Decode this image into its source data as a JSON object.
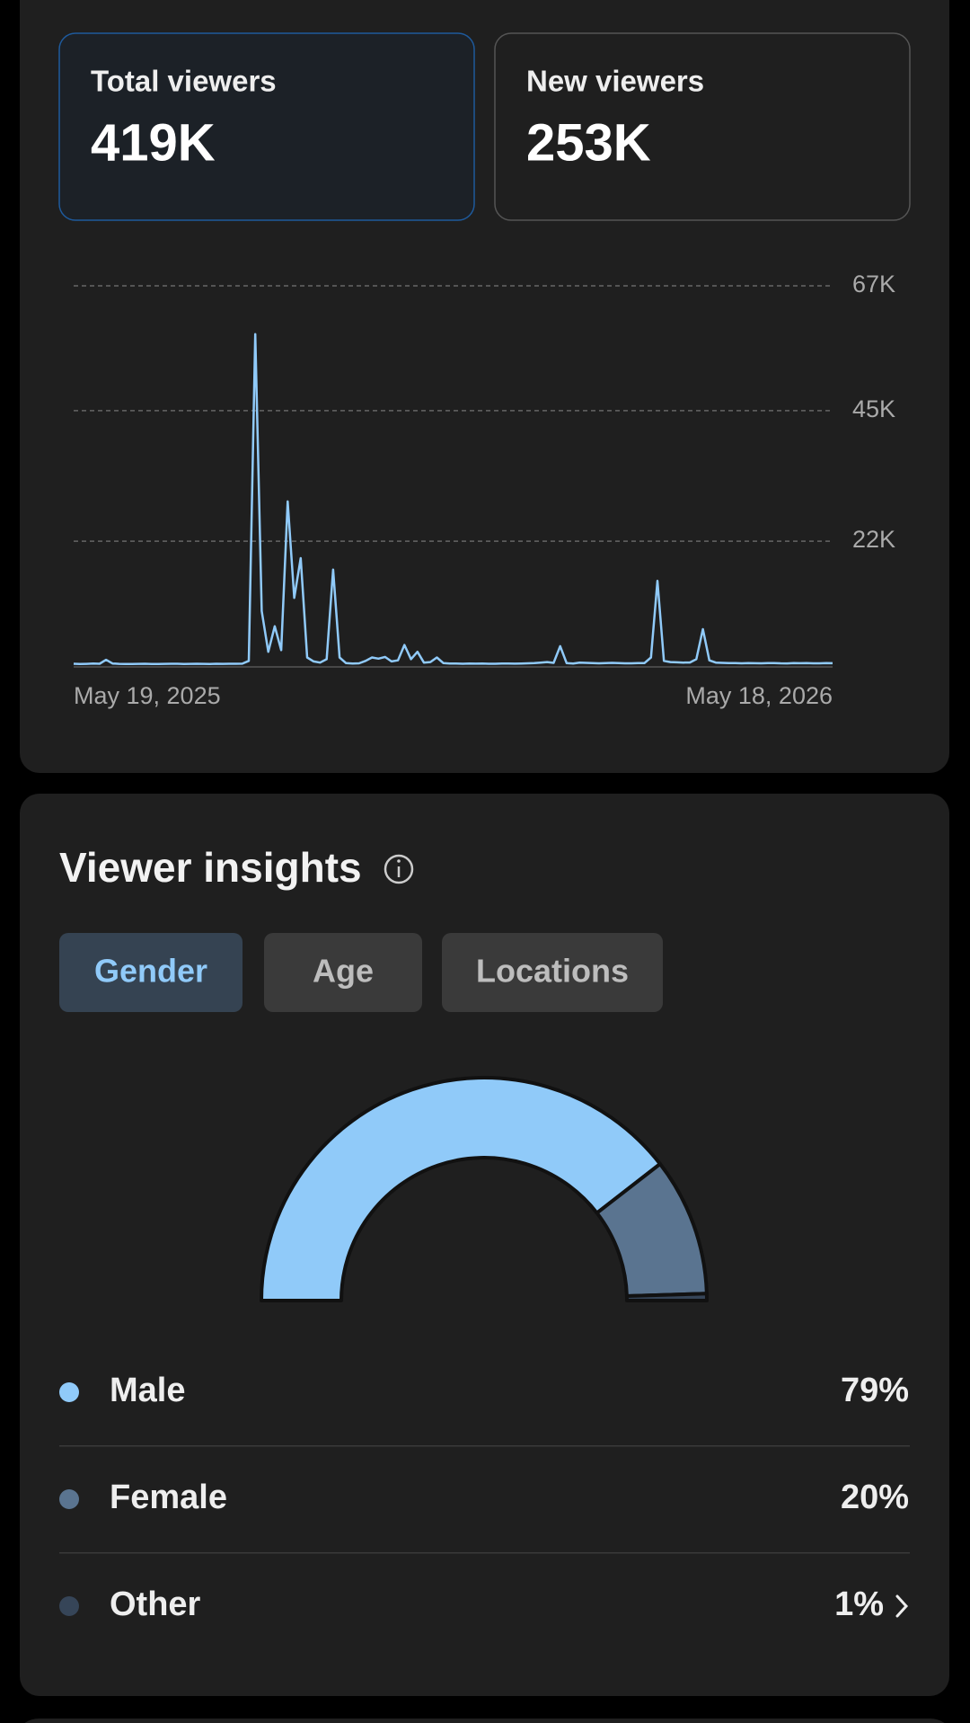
{
  "stats": [
    {
      "label": "Total viewers",
      "value": "419K"
    },
    {
      "label": "New viewers",
      "value": "253K"
    }
  ],
  "chart_data": [
    {
      "type": "line",
      "xlabels": [
        "May 19, 2025",
        "May 18, 2026"
      ],
      "series": [
        {
          "color": "#90caf9",
          "values": [
            400,
            350,
            380,
            420,
            390,
            1100,
            450,
            380,
            360,
            370,
            380,
            390,
            370,
            360,
            380,
            400,
            390,
            370,
            380,
            390,
            380,
            370,
            390,
            380,
            400,
            390,
            410,
            900,
            58500,
            9700,
            2500,
            7000,
            2800,
            29000,
            12000,
            19000,
            1500,
            800,
            600,
            1200,
            17000,
            1500,
            500,
            450,
            480,
            900,
            1500,
            1300,
            1600,
            800,
            1000,
            3700,
            1200,
            2500,
            600,
            700,
            1500,
            500,
            450,
            420,
            400,
            430,
            410,
            420,
            400,
            390,
            420,
            430,
            410,
            450,
            480,
            500,
            600,
            700,
            550,
            3500,
            500,
            450,
            600,
            550,
            500,
            480,
            520,
            550,
            500,
            480,
            470,
            500,
            520,
            1500,
            15000,
            900,
            700,
            650,
            600,
            620,
            1200,
            6500,
            1000,
            600,
            550,
            500,
            520,
            480,
            500,
            490,
            470,
            500,
            520,
            480,
            460,
            500,
            490,
            510,
            480,
            470,
            500,
            490
          ]
        }
      ],
      "ylim": [
        0,
        67000
      ],
      "yticks": [
        {
          "value": 22000,
          "label": "22K"
        },
        {
          "value": 45000,
          "label": "45K"
        },
        {
          "value": 67000,
          "label": "67K"
        }
      ],
      "grid": true
    },
    {
      "type": "pie",
      "half_donut": true,
      "categories": [
        "Male",
        "Female",
        "Other"
      ],
      "values": [
        79,
        20,
        1
      ],
      "value_labels": [
        "79%",
        "20%",
        "1%"
      ],
      "colors": [
        "#90caf9",
        "#5a7490",
        "#364558"
      ]
    }
  ],
  "insights": {
    "title": "Viewer insights",
    "tabs": [
      {
        "label": "Gender",
        "selected": true
      },
      {
        "label": "Age",
        "selected": false
      },
      {
        "label": "Locations",
        "selected": false
      }
    ]
  }
}
